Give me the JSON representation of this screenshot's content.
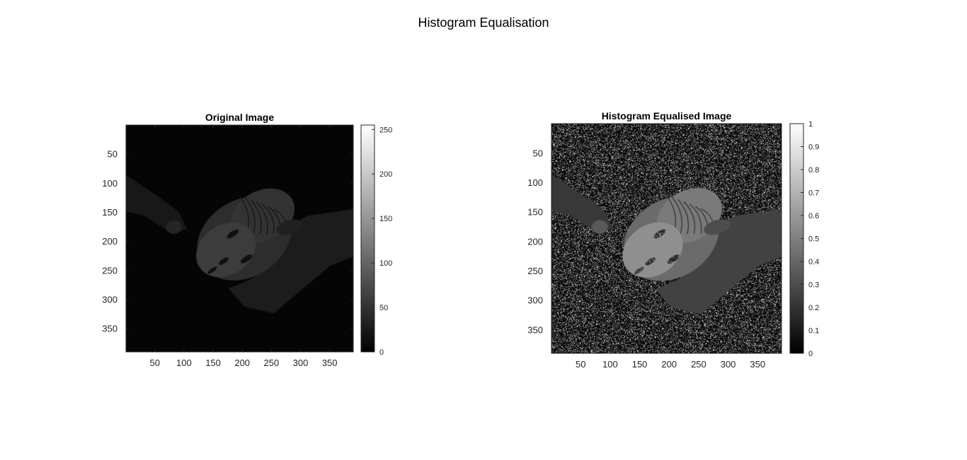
{
  "figure_title": "Histogram Equalisation",
  "colors": {
    "axis": "#262626",
    "title": "#000000",
    "background": "#ffffff"
  },
  "chart_data": [
    {
      "type": "heatmap",
      "title": "Original Image",
      "image_description_icon": "sculpture-head-held-in-hands-icon",
      "xlim": [
        0.5,
        390.5
      ],
      "ylim": [
        0.5,
        390.5
      ],
      "xticks": [
        50,
        100,
        150,
        200,
        250,
        300,
        350
      ],
      "yticks": [
        50,
        100,
        150,
        200,
        250,
        300,
        350
      ],
      "y_direction": "reverse",
      "colorbar": {
        "range": [
          0,
          255
        ],
        "ticks": [
          0,
          50,
          100,
          150,
          200,
          250
        ],
        "colormap": "gray"
      },
      "brightness_gain": 0.42,
      "noise_fraction": 0,
      "background_level": 0.02
    },
    {
      "type": "heatmap",
      "title": "Histogram Equalised Image",
      "image_description_icon": "sculpture-head-held-in-hands-icon",
      "xlim": [
        0.5,
        390.5
      ],
      "ylim": [
        0.5,
        390.5
      ],
      "xticks": [
        50,
        100,
        150,
        200,
        250,
        300,
        350
      ],
      "yticks": [
        50,
        100,
        150,
        200,
        250,
        300,
        350
      ],
      "y_direction": "reverse",
      "colorbar": {
        "range": [
          0,
          1
        ],
        "ticks": [
          0,
          0.1,
          0.2,
          0.3,
          0.4,
          0.5,
          0.6,
          0.7,
          0.8,
          0.9,
          1
        ],
        "colormap": "gray"
      },
      "brightness_gain": 1.0,
      "noise_fraction": 0.2,
      "background_level": 0.05
    }
  ]
}
